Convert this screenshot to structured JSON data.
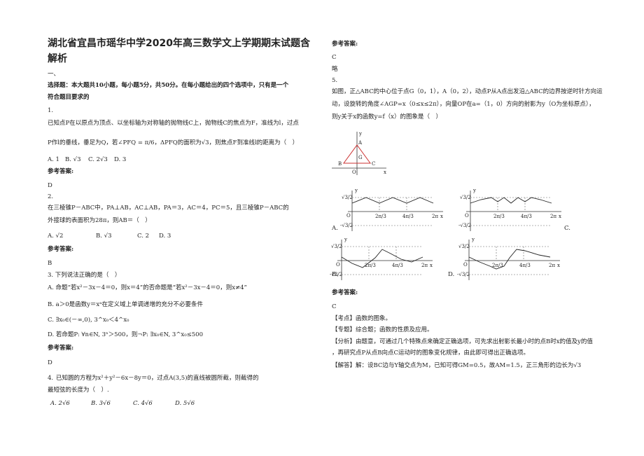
{
  "title": [
    "湖北省宜昌市瑶华中学2020年高三数学文上学期期末试题含",
    "解析"
  ],
  "section": {
    "number": "一、",
    "heading": [
      "选择题：本大题共10小题，每小题5分，共50分。在每小题给出的四个选项中，只有是一个",
      "符合题目要求的"
    ]
  },
  "answer_label": "参考答案:",
  "questions": [
    {
      "number": "1.",
      "text": [
        "已知点P在以原点为顶点、以坐标轴为对称轴的抛物线C上，抛物线C的焦点为F，准线为l，过点",
        "P作l的垂线，垂足为Q，若∠PFQ = π/6，ΔPFQ的面积为√3，则焦点F到准线l的距离为（　）"
      ],
      "options": [
        "A. 1",
        "B. √3",
        "C. 2√3",
        "D. 3"
      ],
      "answer": "D"
    },
    {
      "number": "2.",
      "text": [
        "在三棱锥P－ABC中，PA⊥AB，AC⊥AB，PA＝3，AC＝4，PC＝5，且三棱锥P－ABC的",
        "外接球的表面积为28π，则AB＝（　）"
      ],
      "options": [
        "A. √2",
        "B. √3",
        "C. 2",
        "D. 3"
      ],
      "answer": "B"
    },
    {
      "number": "3. 下列说法正确的是（　）",
      "options": [
        "A. 命题“若x²－3x－4＝0，则x＝4”的否命题是“若x²－3x－4＝0，则x≠4”",
        "B. a＞0是函数y＝xᵃ在定义域上单调递增的充分不必要条件",
        "C. ∃x₀∈(－∞,0), 3^x₀＜4^x₀",
        "D. 若命题P: ∀n∈N, 3ⁿ＞500，则¬P: ∃x₀∈N, 3^x₀≤500"
      ],
      "answer": "D"
    },
    {
      "number": "4.",
      "text": [
        "已知圆的方程为x²＋y²－6x－8y＝0，过点A(3,5)的直线被圆所截，则截得的",
        "最短弦的长度为（　）."
      ],
      "options": [
        "A. 2√6",
        "B. 3√6",
        "C. 4√6",
        "D. 5√6"
      ],
      "answer": "C",
      "note": "略"
    },
    {
      "number": "5.",
      "text": [
        "如图，正△ABC的中心位于点G（0，1），A（0，2），动点P从A点出发沿△ABC的边界按逆时针方向运",
        "动，设旋转的角度∠AGP=x（0≤x≤2π），向量OP在a=（1，0）方向的射影为y（O为坐标原点），",
        "则y关于x的函数y=f（x）的图象是（　）"
      ],
      "figure_labels": {
        "y": "y",
        "x": "x",
        "A": "A",
        "G": "G",
        "B": "B",
        "C": "C",
        "O": "O"
      },
      "graph_labels": {
        "y": "y",
        "x": "x",
        "O": "O",
        "top": "√3/2",
        "bottom": "-√3/2",
        "t1": "2π/3",
        "t2": "4π/3",
        "end": "2π"
      },
      "option_letters": [
        "A.",
        "C.",
        "B.",
        "D."
      ],
      "answer": "C",
      "analysis": [
        "【考点】函数的图象。",
        "【专题】综合题；函数的性质及应用。",
        "【分析】由题意，可通过几个特殊点来确定正确选项，可先求出射影长最小时的点B时x的值及y的值",
        "，再研究点P从点B向点C运动时的图象变化规律，由此即可得出正确选项。",
        "【解答】解：设BC边与Y轴交点为M，已知可得GM=0.5，故AM=1.5，正三角形的边长为√3"
      ]
    }
  ]
}
